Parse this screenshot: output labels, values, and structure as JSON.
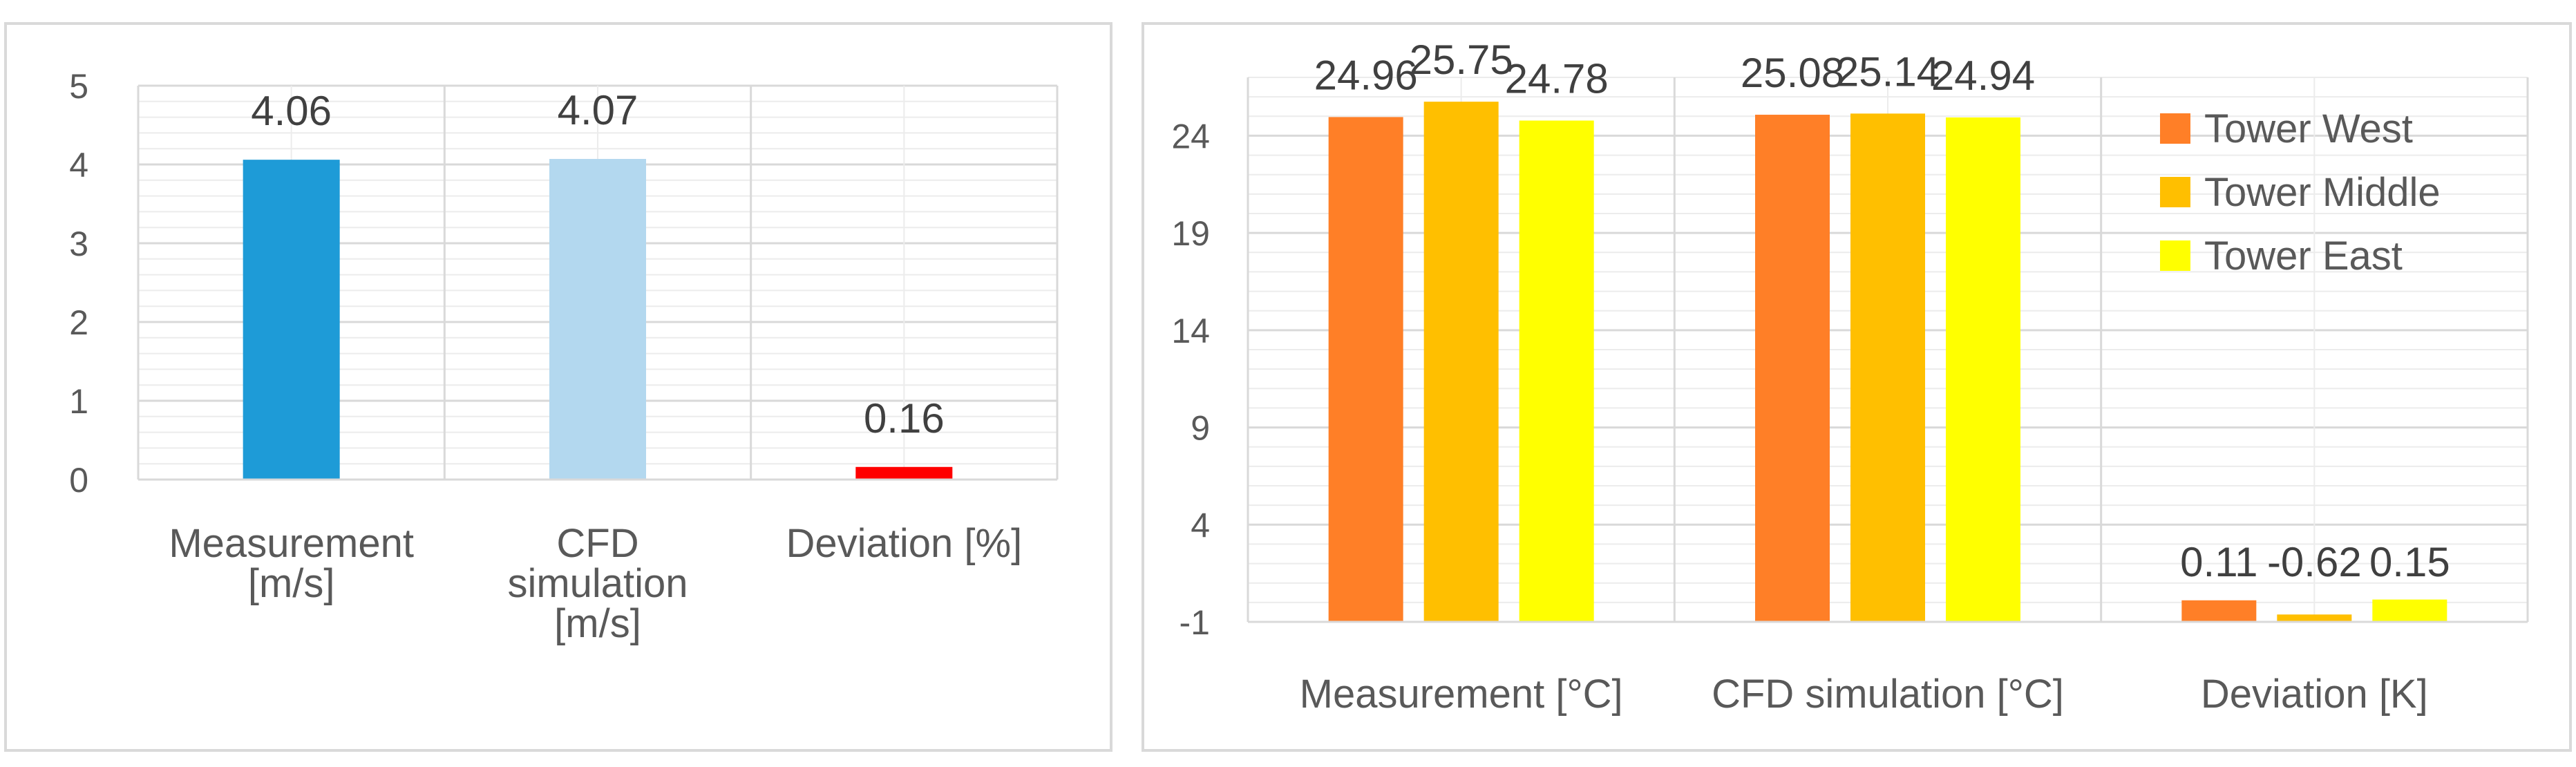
{
  "chart_data": [
    {
      "type": "bar",
      "categories": [
        [
          "Measurement",
          "[m/s]"
        ],
        [
          "CFD",
          "simulation",
          "[m/s]"
        ],
        [
          "Deviation [%]"
        ]
      ],
      "values": [
        4.06,
        4.07,
        0.16
      ],
      "data_labels": [
        "4.06",
        "4.07",
        "0.16"
      ],
      "bar_colors": [
        "#1e9bd7",
        "#b3d8ef",
        "#ff0000"
      ],
      "ylim": [
        0,
        5
      ],
      "yticks": [
        "0",
        "1",
        "2",
        "3",
        "4",
        "5"
      ],
      "title": "",
      "xlabel": "",
      "ylabel": "",
      "grid": true,
      "legend": "none"
    },
    {
      "type": "bar",
      "categories": [
        [
          "Measurement [°C]"
        ],
        [
          "CFD simulation [°C]"
        ],
        [
          "Deviation [K]"
        ]
      ],
      "series": [
        {
          "name": "Tower West",
          "color": "#ff7f27",
          "values": [
            24.96,
            25.08,
            0.11
          ],
          "data_labels": [
            "24.96",
            "25.08",
            "0.11"
          ]
        },
        {
          "name": "Tower Middle",
          "color": "#ffbf00",
          "values": [
            25.75,
            25.14,
            -0.62
          ],
          "data_labels": [
            "25.75",
            "25.14",
            "-0.62"
          ]
        },
        {
          "name": "Tower East",
          "color": "#ffff00",
          "values": [
            24.78,
            24.94,
            0.15
          ],
          "data_labels": [
            "24.78",
            "24.94",
            "0.15"
          ]
        }
      ],
      "ylim": [
        -1,
        27
      ],
      "yticks": [
        "-1",
        "4",
        "9",
        "14",
        "19",
        "24"
      ],
      "title": "",
      "xlabel": "",
      "ylabel": "",
      "grid": true,
      "legend": "top-right"
    }
  ]
}
